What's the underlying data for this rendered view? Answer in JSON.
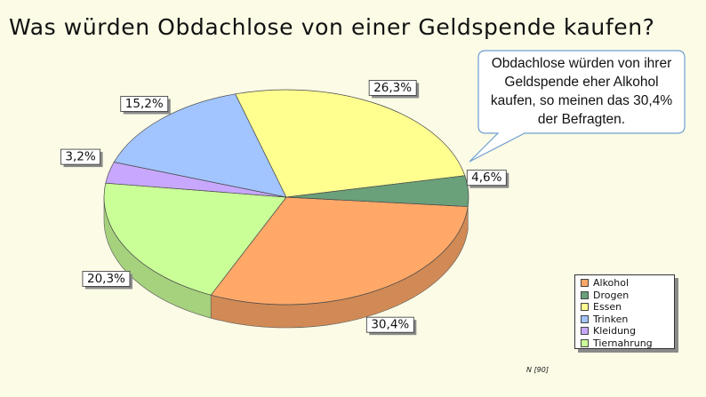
{
  "chart_data": {
    "type": "pie",
    "title": "Was würden Obdachlose von einer Geldspende kaufen?",
    "slices": [
      {
        "name": "Alkohol",
        "value": 30.4,
        "label": "30,4%",
        "color": "#ffa868"
      },
      {
        "name": "Tiernahrung",
        "value": 20.3,
        "label": "20,3%",
        "color": "#caff98"
      },
      {
        "name": "Kleidung",
        "value": 3.2,
        "label": "3,2%",
        "color": "#c8a8ff"
      },
      {
        "name": "Trinken",
        "value": 15.2,
        "label": "15,2%",
        "color": "#a2c4ff"
      },
      {
        "name": "Essen",
        "value": 26.3,
        "label": "26,3%",
        "color": "#ffff90"
      },
      {
        "name": "Drogen",
        "value": 4.6,
        "label": "4,6%",
        "color": "#6aa07a"
      }
    ],
    "legend": {
      "position": "bottom-right",
      "entries": [
        "Alkohol",
        "Drogen",
        "Essen",
        "Trinken",
        "Kleidung",
        "Tiernahrung"
      ]
    },
    "annotation": "Obdachlose würden von ihrer Geldspende eher Alkohol kaufen, so meinen das 30,4% der Befragten.",
    "footnote": "N [90]",
    "view": "3d-tilted"
  }
}
